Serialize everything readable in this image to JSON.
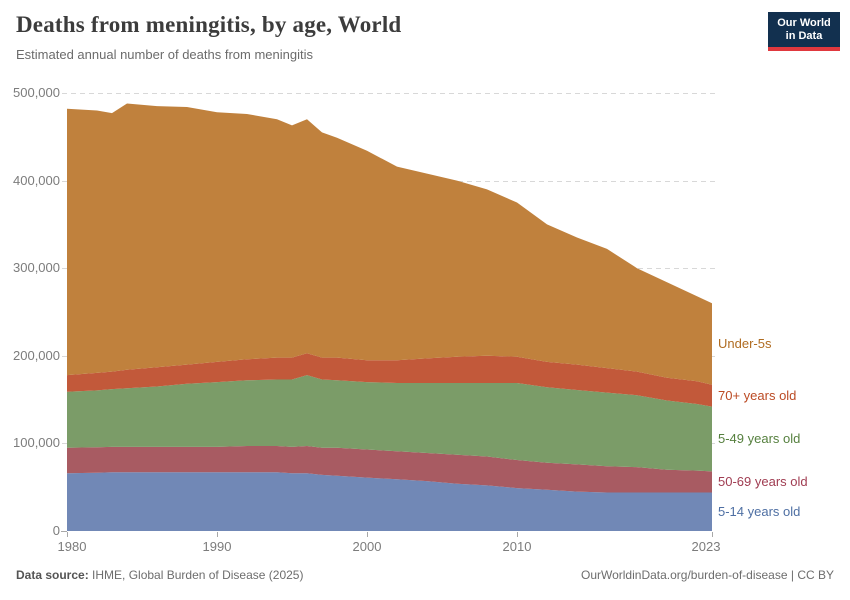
{
  "header": {
    "title": "Deaths from meningitis, by age, World",
    "subtitle": "Estimated annual number of deaths from meningitis",
    "logo": {
      "line1": "Our World",
      "line2": "in Data",
      "bg_color": "#12304f",
      "accent_color": "#e0383e"
    }
  },
  "footer": {
    "source_label": "Data source:",
    "source_text": " IHME, Global Burden of Disease (2025)",
    "link_text": "OurWorldinData.org/burden-of-disease | CC BY"
  },
  "colors": {
    "grid": "#d8d8d8",
    "tick": "#a8a8a8",
    "axis_text": "#7c7c7c"
  },
  "chart_data": {
    "type": "area",
    "stacked": true,
    "stack_order": "bottom-to-top",
    "title": "Deaths from meningitis, by age, World",
    "xlabel": "",
    "ylabel": "Deaths",
    "grid": "horizontal-dashed",
    "legend_position": "right-of-plot",
    "x_range": [
      1980,
      2023
    ],
    "ylim": [
      0,
      500000
    ],
    "x_ticks": [
      1980,
      1990,
      2000,
      2010,
      2023
    ],
    "y_ticks": [
      {
        "value": 0,
        "label": "0"
      },
      {
        "value": 100000,
        "label": "100,000"
      },
      {
        "value": 200000,
        "label": "200,000"
      },
      {
        "value": 300000,
        "label": "300,000"
      },
      {
        "value": 400000,
        "label": "400,000"
      },
      {
        "value": 500000,
        "label": "500,000"
      }
    ],
    "x": [
      1980,
      1982,
      1983,
      1984,
      1986,
      1988,
      1990,
      1992,
      1994,
      1995,
      1996,
      1997,
      1998,
      2000,
      2002,
      2004,
      2006,
      2008,
      2010,
      2012,
      2014,
      2016,
      2018,
      2020,
      2022,
      2023
    ],
    "series": [
      {
        "name": "5-14 years old",
        "area_color": "#7188b6",
        "label_color": "#4e6fa3",
        "values": [
          66000,
          66500,
          67000,
          67000,
          67000,
          67000,
          67000,
          67000,
          67000,
          66000,
          66000,
          64000,
          63000,
          61000,
          59000,
          57000,
          54000,
          52000,
          49000,
          47000,
          45000,
          44000,
          44000,
          44000,
          44000,
          44000
        ]
      },
      {
        "name": "50-69 years old",
        "area_color": "#a85b62",
        "label_color": "#a03d52",
        "values": [
          29000,
          29000,
          29000,
          29000,
          29000,
          29000,
          29000,
          30000,
          30000,
          30000,
          31000,
          31000,
          32000,
          32000,
          32000,
          32000,
          33000,
          33000,
          32000,
          31000,
          31000,
          30000,
          29000,
          26000,
          25000,
          24000
        ]
      },
      {
        "name": "5-49 years old",
        "area_color": "#7b9c68",
        "label_color": "#56803f",
        "values": [
          64000,
          65000,
          66000,
          67000,
          69000,
          72000,
          74000,
          75000,
          76000,
          77000,
          81000,
          78000,
          77000,
          77000,
          78000,
          80000,
          82000,
          84000,
          88000,
          86000,
          85000,
          84000,
          82000,
          79000,
          76000,
          74000
        ]
      },
      {
        "name": "70+ years old",
        "area_color": "#c2593a",
        "label_color": "#bb4a23",
        "values": [
          19000,
          20000,
          20000,
          21000,
          22000,
          22000,
          23000,
          24000,
          25000,
          25000,
          25000,
          25000,
          26000,
          25000,
          26000,
          28000,
          30000,
          31000,
          30000,
          29000,
          29000,
          28000,
          27000,
          26000,
          26000,
          25000
        ]
      },
      {
        "name": "Under-5s",
        "area_color": "#c0813d",
        "label_color": "#b06c21",
        "values": [
          304000,
          299500,
          295000,
          304000,
          298000,
          294000,
          285000,
          280000,
          272000,
          265000,
          267000,
          257000,
          251000,
          239000,
          221000,
          211000,
          201000,
          190000,
          176000,
          157000,
          145000,
          136000,
          118000,
          109000,
          97000,
          93000
        ]
      }
    ]
  }
}
